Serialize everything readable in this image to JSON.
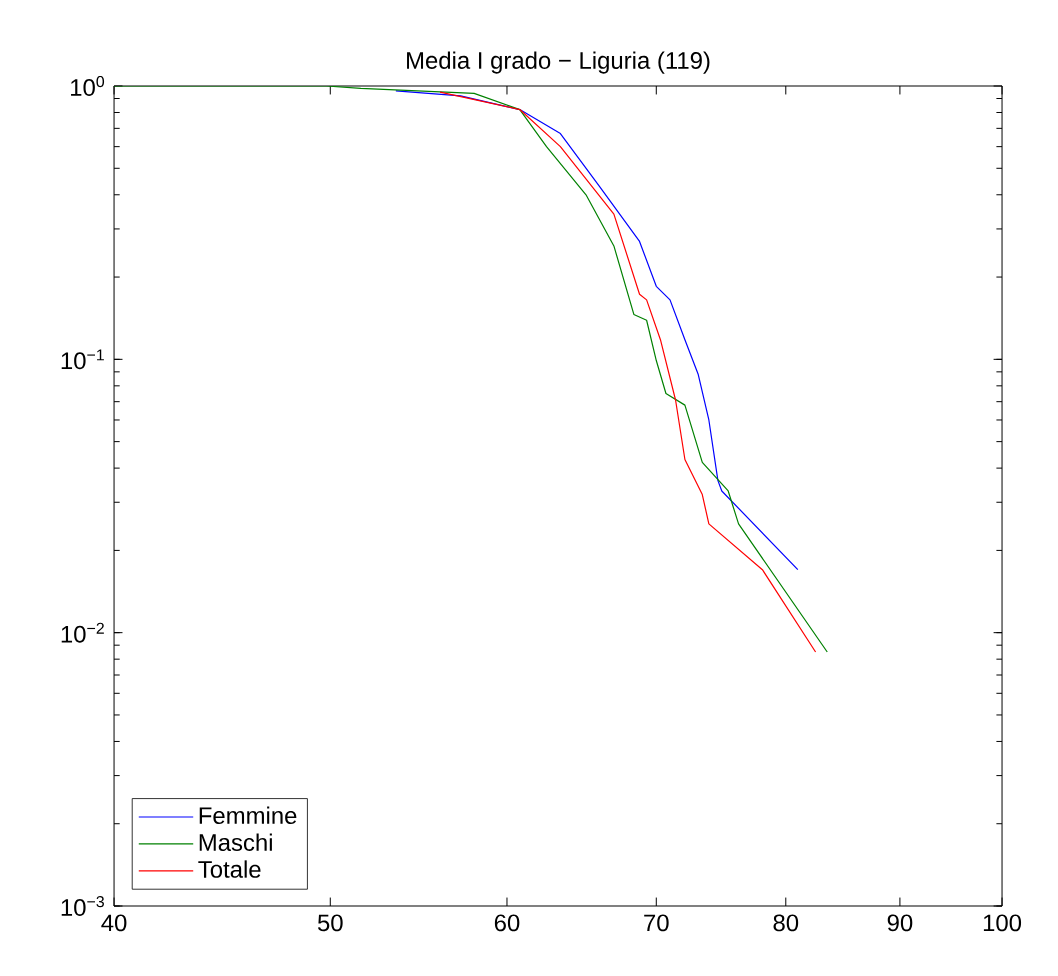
{
  "chart_data": {
    "type": "line",
    "title": "Media I grado − Liguria (119)",
    "log": "xy",
    "grid": false,
    "legend": "bottom left",
    "marker": "none",
    "line_style": "solid",
    "xlim": [
      40,
      100
    ],
    "xticks": [
      40,
      50,
      60,
      70,
      80,
      90,
      100
    ],
    "ylim": [
      0.001,
      1
    ],
    "yticks": [
      {
        "value": 0.001,
        "label": "10$^{−3}$"
      },
      {
        "value": 0.01,
        "label": "10$^{−2}$"
      },
      {
        "value": 0.1,
        "label": "10$^{−1}$"
      },
      {
        "value": 1,
        "label": "10$^{0}$"
      }
    ],
    "series": [
      {
        "name": "Femmine",
        "color": "#0000ff",
        "x": [
          53.5,
          57.2,
          60.8,
          63.4,
          66.0,
          68.8,
          70.0,
          71.0,
          72.1,
          73.1,
          73.9,
          74.6,
          74.9,
          81.0
        ],
        "values": [
          0.96,
          0.92,
          0.82,
          0.67,
          0.43,
          0.27,
          0.185,
          0.165,
          0.118,
          0.088,
          0.06,
          0.036,
          0.033,
          0.017
        ]
      },
      {
        "name": "Maschi",
        "color": "#008000",
        "x": [
          40,
          49.8,
          51.6,
          58.0,
          60.8,
          62.5,
          65.1,
          67.0,
          68.4,
          69.3,
          70.0,
          70.7,
          72.1,
          73.4,
          75.4,
          76.2,
          83.5
        ],
        "values": [
          1,
          1,
          0.98,
          0.94,
          0.82,
          0.6,
          0.4,
          0.26,
          0.146,
          0.139,
          0.099,
          0.075,
          0.068,
          0.042,
          0.033,
          0.025,
          0.0085
        ]
      },
      {
        "name": "Totale",
        "color": "#ff0000",
        "x": [
          56,
          60.8,
          63.4,
          67.0,
          68.8,
          69.3,
          70.3,
          71.4,
          72.1,
          73.4,
          73.9,
          78.1,
          82.5
        ],
        "values": [
          0.95,
          0.82,
          0.6,
          0.34,
          0.173,
          0.165,
          0.118,
          0.071,
          0.043,
          0.032,
          0.025,
          0.017,
          0.0085
        ]
      }
    ]
  }
}
